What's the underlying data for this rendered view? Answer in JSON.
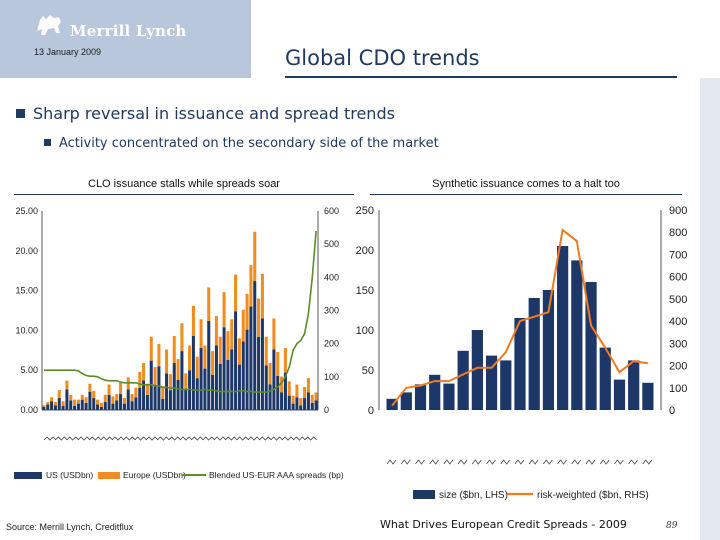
{
  "header": {
    "logo_text": "Merrill Lynch",
    "date": "13 January 2009",
    "title": "Global CDO trends"
  },
  "bullets": {
    "level1": "Sharp reversal in issuance and spread trends",
    "level2": "Activity concentrated on the secondary side of the market"
  },
  "colors": {
    "navy": "#1f3a60",
    "us_bar": "#1c3768",
    "europe_bar": "#f28c1e",
    "spread_line": "#5b8c2a",
    "synthetic_bar": "#1c3768",
    "risk_line": "#f07b23"
  },
  "footer": {
    "source": "Source: Merrill Lynch, Creditflux",
    "center": "What Drives European Credit Spreads - 2009",
    "page": "89"
  },
  "chart_data": [
    {
      "type": "bar",
      "stacked": true,
      "title": "CLO issuance stalls while spreads soar",
      "left_axis": {
        "ticks": [
          "0.00",
          "5.00",
          "10.00",
          "15.00",
          "20.00",
          "25.00"
        ],
        "ylim": [
          0,
          25
        ]
      },
      "right_axis": {
        "ticks": [
          "0",
          "100",
          "200",
          "300",
          "400",
          "500",
          "600"
        ],
        "ylim": [
          0,
          600
        ]
      },
      "series": [
        {
          "name": "US (USDbn)",
          "axis": "left",
          "values": [
            0.4,
            0.7,
            1.1,
            0.6,
            1.5,
            0.5,
            2.6,
            1.2,
            0.5,
            0.8,
            1.3,
            0.9,
            2.3,
            1.5,
            0.7,
            0.4,
            1.0,
            1.9,
            0.8,
            1.2,
            2.0,
            0.8,
            2.6,
            1.1,
            1.6,
            2.8,
            3.7,
            1.9,
            6.2,
            3.0,
            5.5,
            1.4,
            4.6,
            2.5,
            5.9,
            3.8,
            7.4,
            2.6,
            5.0,
            9.3,
            4.0,
            7.8,
            5.2,
            11.2,
            4.4,
            8.1,
            5.8,
            10.4,
            6.3,
            7.6,
            12.4,
            5.7,
            8.6,
            10.1,
            13.0,
            16.2,
            9.2,
            11.5,
            5.6,
            3.2,
            7.6,
            4.3,
            2.2,
            4.7,
            1.8,
            0.8,
            1.6,
            0.6,
            1.5,
            2.2,
            0.9,
            1.2
          ],
          "note": "values approximate, read from bar heights; date tick labels below the axis are unreadable"
        },
        {
          "name": "Europe (USDbn)",
          "axis": "left",
          "values": [
            0.2,
            0.3,
            0.5,
            0.4,
            1.0,
            0.6,
            1.1,
            0.7,
            0.8,
            0.5,
            0.6,
            0.7,
            1.0,
            0.9,
            0.6,
            0.5,
            0.9,
            1.3,
            0.9,
            0.8,
            1.4,
            0.7,
            1.5,
            0.9,
            1.2,
            2.0,
            2.2,
            1.4,
            3.0,
            2.4,
            2.8,
            1.6,
            3.0,
            2.0,
            3.4,
            2.6,
            3.5,
            2.0,
            3.1,
            3.8,
            2.7,
            3.6,
            2.9,
            4.2,
            3.0,
            3.7,
            3.4,
            4.4,
            3.6,
            3.8,
            4.6,
            3.3,
            4.0,
            4.5,
            5.2,
            6.2,
            4.8,
            5.6,
            3.6,
            2.7,
            3.9,
            3.0,
            2.0,
            3.1,
            1.8,
            1.0,
            1.6,
            0.9,
            1.4,
            1.8,
            1.0,
            1.0
          ]
        },
        {
          "name": "Blended US-EUR AAA spreads (bp)",
          "axis": "right",
          "type": "line",
          "values": [
            120,
            120,
            120,
            120,
            120,
            120,
            120,
            120,
            120,
            118,
            110,
            104,
            102,
            102,
            100,
            94,
            90,
            88,
            88,
            88,
            84,
            82,
            82,
            82,
            82,
            78,
            76,
            76,
            76,
            74,
            72,
            68,
            68,
            66,
            66,
            64,
            62,
            62,
            62,
            60,
            60,
            60,
            62,
            60,
            60,
            58,
            56,
            56,
            56,
            56,
            56,
            58,
            58,
            56,
            56,
            54,
            54,
            54,
            54,
            58,
            62,
            70,
            82,
            100,
            130,
            180,
            200,
            210,
            230,
            290,
            400,
            540
          ]
        }
      ]
    },
    {
      "type": "bar",
      "title": "Synthetic issuance comes to a halt too",
      "left_axis": {
        "ticks": [
          "0",
          "50",
          "100",
          "150",
          "200",
          "250"
        ],
        "ylim": [
          0,
          250
        ]
      },
      "right_axis": {
        "ticks": [
          "0",
          "100",
          "200",
          "300",
          "400",
          "500",
          "600",
          "700",
          "800",
          "900"
        ],
        "ylim": [
          0,
          900
        ]
      },
      "series": [
        {
          "name": "size ($bn, LHS)",
          "axis": "left",
          "values": [
            14,
            22,
            32,
            44,
            33,
            74,
            100,
            68,
            62,
            115,
            140,
            150,
            205,
            187,
            160,
            78,
            38,
            62,
            34
          ]
        },
        {
          "name": "risk-weighted ($bn, RHS)",
          "axis": "right",
          "type": "line",
          "values": [
            20,
            100,
            110,
            130,
            130,
            160,
            190,
            190,
            260,
            400,
            420,
            440,
            810,
            760,
            380,
            280,
            170,
            220,
            210
          ]
        }
      ]
    }
  ]
}
